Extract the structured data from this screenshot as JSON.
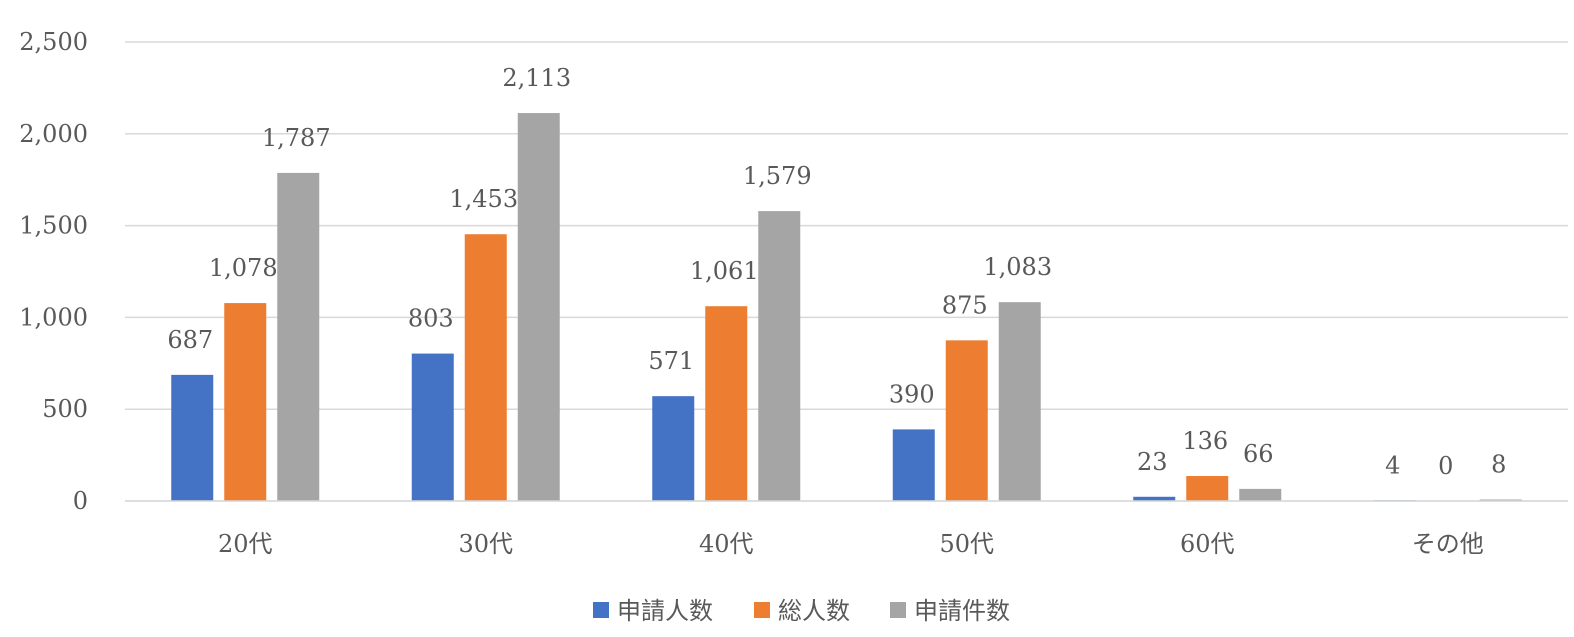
{
  "chart_data": {
    "type": "bar",
    "title": "",
    "xlabel": "",
    "ylabel": "",
    "categories": [
      "20代",
      "30代",
      "40代",
      "50代",
      "60代",
      "その他"
    ],
    "series": [
      {
        "name": "申請人数",
        "color": "#4472C4",
        "values": [
          687,
          803,
          571,
          390,
          23,
          4
        ]
      },
      {
        "name": "総人数",
        "color": "#ED7D31",
        "values": [
          1078,
          1453,
          1061,
          875,
          136,
          0
        ]
      },
      {
        "name": "申請件数",
        "color": "#A5A5A5",
        "values": [
          1787,
          2113,
          1579,
          1083,
          66,
          8
        ]
      }
    ],
    "ylim": [
      0,
      2500
    ],
    "yticks": [
      0,
      500,
      1000,
      1500,
      2000,
      2500
    ],
    "ytick_labels": [
      "0",
      "500",
      "1,000",
      "1,500",
      "2,000",
      "2,500"
    ],
    "data_labels": [
      [
        "687",
        "803",
        "571",
        "390",
        "23",
        "4"
      ],
      [
        "1,078",
        "1,453",
        "1,061",
        "875",
        "136",
        "0"
      ],
      [
        "1,787",
        "2,113",
        "1,579",
        "1,083",
        "66",
        "8"
      ]
    ],
    "grid": true,
    "gridline_color": "#D9D9D9",
    "legend_position": "bottom"
  }
}
